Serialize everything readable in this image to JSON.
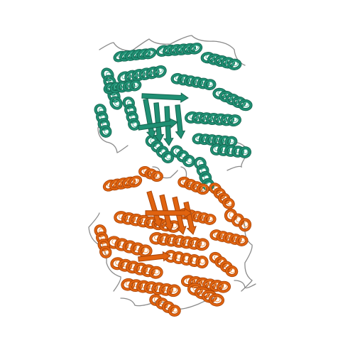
{
  "image": {
    "subject": "protein-ribbon-structure",
    "colors": {
      "background": "#ffffff",
      "chain_a": "#1f8f73",
      "chain_a_dark": "#15644f",
      "chain_a_light": "#4cc0a0",
      "chain_b": "#e0630f",
      "chain_b_dark": "#a84307",
      "chain_b_light": "#f79a4a",
      "loop": "#8a8a8a"
    },
    "icons": [
      "teal-chain-icon",
      "orange-chain-icon"
    ]
  }
}
